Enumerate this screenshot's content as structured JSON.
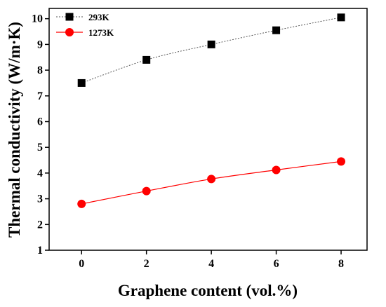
{
  "chart_data": {
    "type": "line",
    "title": "",
    "xlabel": "Graphene content (vol.%)",
    "ylabel": "Thermal conductivity (W/m·K)",
    "x": [
      0,
      2,
      4,
      6,
      8
    ],
    "xlim": [
      -1.0,
      8.8
    ],
    "ylim": [
      1,
      10.4
    ],
    "xticks": [
      0,
      2,
      4,
      6,
      8
    ],
    "yticks": [
      1,
      2,
      3,
      4,
      5,
      6,
      7,
      8,
      9,
      10
    ],
    "grid": false,
    "legend_position": "top-left",
    "series": [
      {
        "name": "293K",
        "values": [
          7.5,
          8.4,
          9.0,
          9.55,
          10.05
        ],
        "color": "#000000",
        "marker": "square",
        "line_style": "dotted",
        "line_color": "#555555"
      },
      {
        "name": "1273K",
        "values": [
          2.8,
          3.3,
          3.77,
          4.12,
          4.45
        ],
        "color": "#ff0000",
        "marker": "circle",
        "line_style": "solid",
        "line_color": "#ff0000"
      }
    ]
  }
}
